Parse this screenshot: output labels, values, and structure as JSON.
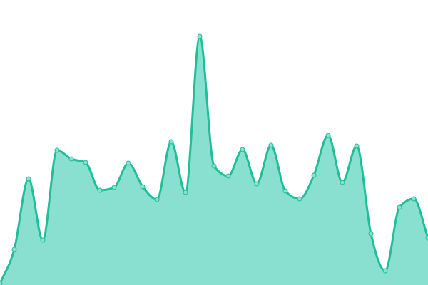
{
  "chart_data": {
    "type": "area",
    "title": "",
    "xlabel": "",
    "ylabel": "",
    "x": [
      0,
      1,
      2,
      3,
      4,
      5,
      6,
      7,
      8,
      9,
      10,
      11,
      12,
      13,
      14,
      15,
      16,
      17,
      18,
      19,
      20,
      21,
      22,
      23,
      24,
      25,
      26,
      27,
      28,
      29,
      30
    ],
    "values": [
      2,
      50,
      149,
      63,
      189,
      177,
      172,
      133,
      137,
      171,
      138,
      120,
      201,
      130,
      349,
      167,
      153,
      190,
      142,
      196,
      132,
      121,
      154,
      210,
      144,
      195,
      72,
      20,
      109,
      121,
      66
    ],
    "xlim": [
      0,
      30
    ],
    "ylim": [
      0,
      400
    ],
    "grid": false,
    "axes_visible": false,
    "smooth": true,
    "colors": {
      "line": "#1fbf98",
      "fill": "#8ae0d0",
      "marker_fill": "#8ae0d0",
      "marker_stroke": "#1fbf98"
    }
  }
}
